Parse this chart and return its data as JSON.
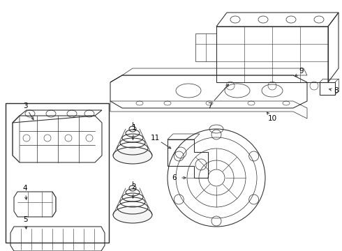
{
  "bg_color": "#ffffff",
  "line_color": "#2a2a2a",
  "label_color": "#000000",
  "figsize": [
    4.9,
    3.6
  ],
  "dpi": 100,
  "lw": 0.75,
  "label_fs": 7.5
}
